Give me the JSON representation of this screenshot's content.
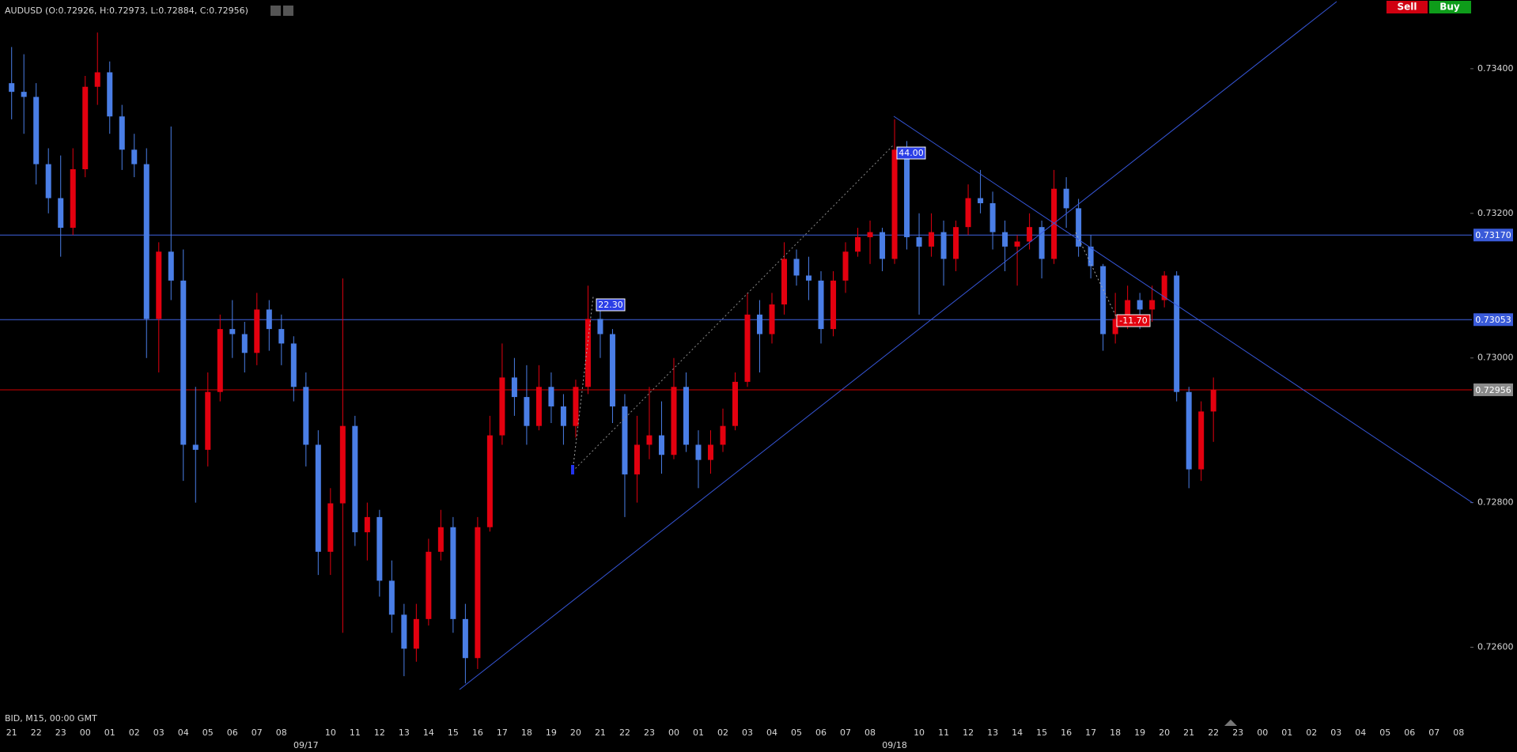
{
  "chart_data": {
    "type": "candlestick",
    "title": "AUDUSD (O:0.72926, H:0.72973, L:0.72884, C:0.72956)",
    "footer": "BID, M15, 00:00 GMT",
    "buttons": [
      "Sell",
      "Buy"
    ],
    "up_color": "#e3000f",
    "down_color": "#4a7ee6",
    "ylim": [
      0.72512,
      0.73495
    ],
    "yticks": [
      {
        "value": 0.734,
        "label": "0.73400"
      },
      {
        "value": 0.732,
        "label": "0.73200"
      },
      {
        "value": 0.73,
        "label": "0.73000"
      },
      {
        "value": 0.728,
        "label": "0.72800"
      },
      {
        "value": 0.726,
        "label": "0.72600"
      }
    ],
    "hlines": [
      {
        "value": 0.7317,
        "label": "0.73170",
        "color": "#4162e0",
        "label_color": "#3a5bd9"
      },
      {
        "value": 0.73053,
        "color": "#4162e0",
        "label_color": "#3a5bd9"
      },
      {
        "value": 0.72956,
        "color": "#d00000",
        "label_color": "#8a8a8a"
      }
    ],
    "annotations": [
      "22.30",
      "44.00",
      "-11.70"
    ],
    "categories": [
      "21",
      "22",
      "23",
      "00",
      "01",
      "02",
      "03",
      "04",
      "05",
      "06",
      "07",
      "08",
      "09/17",
      "10",
      "11",
      "12",
      "13",
      "14",
      "15",
      "16",
      "17",
      "18",
      "19",
      "20",
      "21",
      "22",
      "23",
      "00",
      "01",
      "02",
      "03",
      "04",
      "05",
      "06",
      "07",
      "08",
      "09/18",
      "10",
      "11",
      "12",
      "13",
      "14",
      "15",
      "16",
      "17",
      "18",
      "19",
      "20",
      "21",
      "22",
      "23",
      "00",
      "01",
      "02",
      "03",
      "04",
      "05",
      "06",
      "07",
      "08"
    ],
    "candles": [
      [
        0.7338,
        0.7343,
        0.7333,
        0.73368
      ],
      [
        0.73368,
        0.7342,
        0.7331,
        0.73361
      ],
      [
        0.73361,
        0.7338,
        0.7324,
        0.73268
      ],
      [
        0.73268,
        0.7329,
        0.732,
        0.73221
      ],
      [
        0.73221,
        0.7328,
        0.7314,
        0.7318
      ],
      [
        0.7318,
        0.7329,
        0.7317,
        0.73261
      ],
      [
        0.73261,
        0.7339,
        0.7325,
        0.73375
      ],
      [
        0.73375,
        0.7345,
        0.7335,
        0.73395
      ],
      [
        0.73395,
        0.7341,
        0.7331,
        0.73334
      ],
      [
        0.73334,
        0.7335,
        0.7326,
        0.73288
      ],
      [
        0.73288,
        0.7331,
        0.7325,
        0.73268
      ],
      [
        0.73268,
        0.7329,
        0.73,
        0.73054
      ],
      [
        0.73054,
        0.7316,
        0.7298,
        0.73147
      ],
      [
        0.73147,
        0.7332,
        0.7308,
        0.73107
      ],
      [
        0.73107,
        0.7315,
        0.7283,
        0.7288
      ],
      [
        0.7288,
        0.7296,
        0.728,
        0.72873
      ],
      [
        0.72873,
        0.7298,
        0.7285,
        0.72953
      ],
      [
        0.72953,
        0.7306,
        0.7294,
        0.7304
      ],
      [
        0.7304,
        0.7308,
        0.73,
        0.73033
      ],
      [
        0.73033,
        0.7305,
        0.7298,
        0.73007
      ],
      [
        0.73007,
        0.7309,
        0.7299,
        0.73067
      ],
      [
        0.73067,
        0.7308,
        0.7301,
        0.7304
      ],
      [
        0.7304,
        0.7306,
        0.7299,
        0.7302
      ],
      [
        0.7302,
        0.7303,
        0.7294,
        0.7296
      ],
      [
        0.7296,
        0.7298,
        0.7285,
        0.7288
      ],
      [
        0.7288,
        0.729,
        0.727,
        0.72732
      ],
      [
        0.72732,
        0.7282,
        0.727,
        0.72799
      ],
      [
        0.72799,
        0.7311,
        0.7262,
        0.72906
      ],
      [
        0.72906,
        0.7292,
        0.7274,
        0.72759
      ],
      [
        0.72759,
        0.728,
        0.7272,
        0.7278
      ],
      [
        0.7278,
        0.7279,
        0.7267,
        0.72692
      ],
      [
        0.72692,
        0.7272,
        0.7262,
        0.72645
      ],
      [
        0.72645,
        0.7266,
        0.7256,
        0.72598
      ],
      [
        0.72598,
        0.7266,
        0.7258,
        0.72639
      ],
      [
        0.72639,
        0.7275,
        0.7263,
        0.72732
      ],
      [
        0.72732,
        0.7279,
        0.7272,
        0.72766
      ],
      [
        0.72766,
        0.7278,
        0.7262,
        0.72639
      ],
      [
        0.72639,
        0.7266,
        0.7255,
        0.72585
      ],
      [
        0.72585,
        0.7278,
        0.7257,
        0.72766
      ],
      [
        0.72766,
        0.7292,
        0.7276,
        0.72893
      ],
      [
        0.72893,
        0.7302,
        0.7288,
        0.72973
      ],
      [
        0.72973,
        0.73,
        0.7292,
        0.72946
      ],
      [
        0.72946,
        0.7299,
        0.7288,
        0.72906
      ],
      [
        0.72906,
        0.7299,
        0.729,
        0.7296
      ],
      [
        0.7296,
        0.7298,
        0.7291,
        0.72933
      ],
      [
        0.72933,
        0.7295,
        0.7288,
        0.72906
      ],
      [
        0.72906,
        0.7297,
        0.7289,
        0.7296
      ],
      [
        0.7296,
        0.731,
        0.7295,
        0.73054
      ],
      [
        0.73054,
        0.7307,
        0.73,
        0.73033
      ],
      [
        0.73033,
        0.7304,
        0.7291,
        0.72933
      ],
      [
        0.72933,
        0.7295,
        0.7278,
        0.72839
      ],
      [
        0.72839,
        0.7292,
        0.728,
        0.7288
      ],
      [
        0.7288,
        0.7296,
        0.7286,
        0.72893
      ],
      [
        0.72893,
        0.7294,
        0.7284,
        0.72866
      ],
      [
        0.72866,
        0.73,
        0.7286,
        0.7296
      ],
      [
        0.7296,
        0.7298,
        0.7287,
        0.7288
      ],
      [
        0.7288,
        0.729,
        0.7282,
        0.72859
      ],
      [
        0.72859,
        0.729,
        0.7284,
        0.7288
      ],
      [
        0.7288,
        0.7293,
        0.7287,
        0.72906
      ],
      [
        0.72906,
        0.7298,
        0.729,
        0.72967
      ],
      [
        0.72967,
        0.7309,
        0.7296,
        0.7306
      ],
      [
        0.7306,
        0.7308,
        0.7298,
        0.73033
      ],
      [
        0.73033,
        0.7309,
        0.7302,
        0.73074
      ],
      [
        0.73074,
        0.7316,
        0.7306,
        0.73137
      ],
      [
        0.73137,
        0.7315,
        0.731,
        0.73114
      ],
      [
        0.73114,
        0.7314,
        0.7308,
        0.73107
      ],
      [
        0.73107,
        0.7312,
        0.7302,
        0.7304
      ],
      [
        0.7304,
        0.7312,
        0.7303,
        0.73107
      ],
      [
        0.73107,
        0.7316,
        0.7309,
        0.73147
      ],
      [
        0.73147,
        0.7318,
        0.7314,
        0.73167
      ],
      [
        0.73167,
        0.7319,
        0.7313,
        0.73174
      ],
      [
        0.73174,
        0.7318,
        0.7312,
        0.73137
      ],
      [
        0.73137,
        0.7333,
        0.7313,
        0.73288
      ],
      [
        0.73288,
        0.733,
        0.7315,
        0.73167
      ],
      [
        0.73167,
        0.732,
        0.7306,
        0.73154
      ],
      [
        0.73154,
        0.732,
        0.7314,
        0.73174
      ],
      [
        0.73174,
        0.7319,
        0.731,
        0.73137
      ],
      [
        0.73137,
        0.7319,
        0.7312,
        0.73181
      ],
      [
        0.73181,
        0.7324,
        0.7317,
        0.73221
      ],
      [
        0.73221,
        0.7326,
        0.732,
        0.73214
      ],
      [
        0.73214,
        0.7323,
        0.7315,
        0.73174
      ],
      [
        0.73174,
        0.7319,
        0.7312,
        0.73154
      ],
      [
        0.73154,
        0.7317,
        0.731,
        0.73161
      ],
      [
        0.73161,
        0.732,
        0.7315,
        0.73181
      ],
      [
        0.73181,
        0.7319,
        0.7311,
        0.73137
      ],
      [
        0.73137,
        0.7326,
        0.7313,
        0.73234
      ],
      [
        0.73234,
        0.7325,
        0.7318,
        0.73207
      ],
      [
        0.73207,
        0.7322,
        0.7314,
        0.73154
      ],
      [
        0.73154,
        0.7317,
        0.7311,
        0.73127
      ],
      [
        0.73127,
        0.7313,
        0.7301,
        0.73033
      ],
      [
        0.73033,
        0.7309,
        0.7302,
        0.73054
      ],
      [
        0.73054,
        0.731,
        0.7304,
        0.7308
      ],
      [
        0.7308,
        0.7309,
        0.7304,
        0.73067
      ],
      [
        0.73067,
        0.731,
        0.7305,
        0.7308
      ],
      [
        0.7308,
        0.7312,
        0.7307,
        0.73114
      ],
      [
        0.73114,
        0.7312,
        0.7294,
        0.72953
      ],
      [
        0.72953,
        0.7296,
        0.7282,
        0.72846
      ],
      [
        0.72846,
        0.7294,
        0.7283,
        0.72926
      ],
      [
        0.72926,
        0.72973,
        0.72884,
        0.72956
      ]
    ]
  }
}
